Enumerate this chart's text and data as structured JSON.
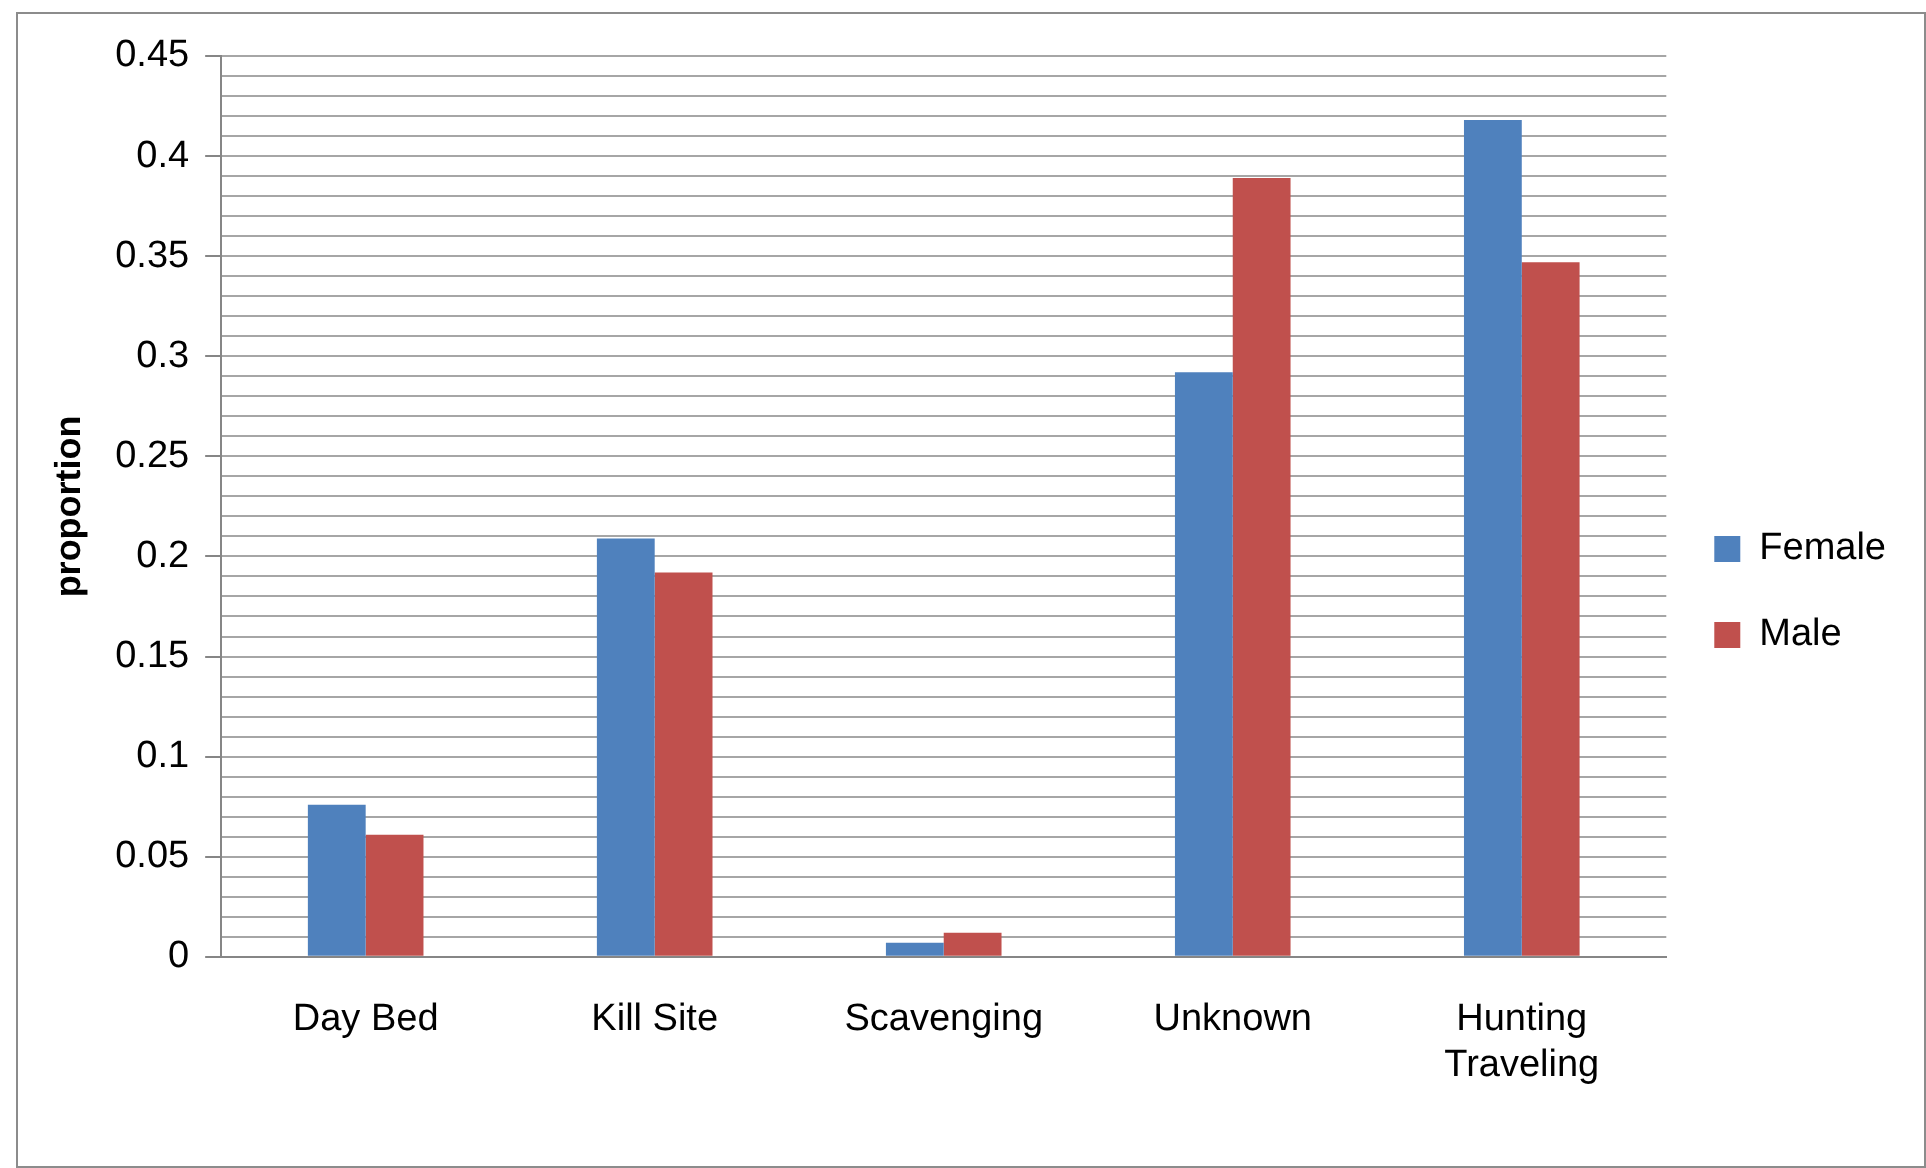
{
  "chart_data": {
    "type": "bar",
    "ylabel": "proportion",
    "categories": [
      "Day Bed",
      "Kill Site",
      "Scavenging",
      "Unknown",
      "Hunting\nTraveling"
    ],
    "series": [
      {
        "name": "Female",
        "color": "#4f81bd",
        "values": [
          0.076,
          0.209,
          0.007,
          0.292,
          0.418
        ]
      },
      {
        "name": "Male",
        "color": "#c0504d",
        "values": [
          0.061,
          0.192,
          0.012,
          0.389,
          0.347
        ]
      }
    ],
    "ylim": [
      0,
      0.45
    ],
    "yticks": [
      0,
      {
        "value": 0.01,
        "label": null
      },
      {
        "value": 0.02,
        "label": null
      },
      {
        "value": 0.03,
        "label": null
      },
      {
        "value": 0.04,
        "label": null
      },
      0.05,
      {
        "value": 0.06,
        "label": null
      },
      {
        "value": 0.07,
        "label": null
      },
      {
        "value": 0.08,
        "label": null
      },
      {
        "value": 0.09,
        "label": null
      },
      0.1,
      {
        "value": 0.11,
        "label": null
      },
      {
        "value": 0.12,
        "label": null
      },
      {
        "value": 0.13,
        "label": null
      },
      {
        "value": 0.14,
        "label": null
      },
      0.15,
      {
        "value": 0.16,
        "label": null
      },
      {
        "value": 0.17,
        "label": null
      },
      {
        "value": 0.18,
        "label": null
      },
      {
        "value": 0.19,
        "label": null
      },
      0.2,
      {
        "value": 0.21,
        "label": null
      },
      {
        "value": 0.22,
        "label": null
      },
      {
        "value": 0.23,
        "label": null
      },
      {
        "value": 0.24,
        "label": null
      },
      0.25,
      {
        "value": 0.26,
        "label": null
      },
      {
        "value": 0.27,
        "label": null
      },
      {
        "value": 0.28,
        "label": null
      },
      {
        "value": 0.29,
        "label": null
      },
      0.3,
      {
        "value": 0.31,
        "label": null
      },
      {
        "value": 0.32,
        "label": null
      },
      {
        "value": 0.33,
        "label": null
      },
      {
        "value": 0.34,
        "label": null
      },
      0.35,
      {
        "value": 0.36,
        "label": null
      },
      {
        "value": 0.37,
        "label": null
      },
      {
        "value": 0.38,
        "label": null
      },
      {
        "value": 0.39,
        "label": null
      },
      0.4,
      {
        "value": 0.41,
        "label": null
      },
      {
        "value": 0.42,
        "label": null
      },
      {
        "value": 0.43,
        "label": null
      },
      {
        "value": 0.44,
        "label": null
      },
      0.45
    ],
    "grid": "y",
    "legend": "right"
  }
}
